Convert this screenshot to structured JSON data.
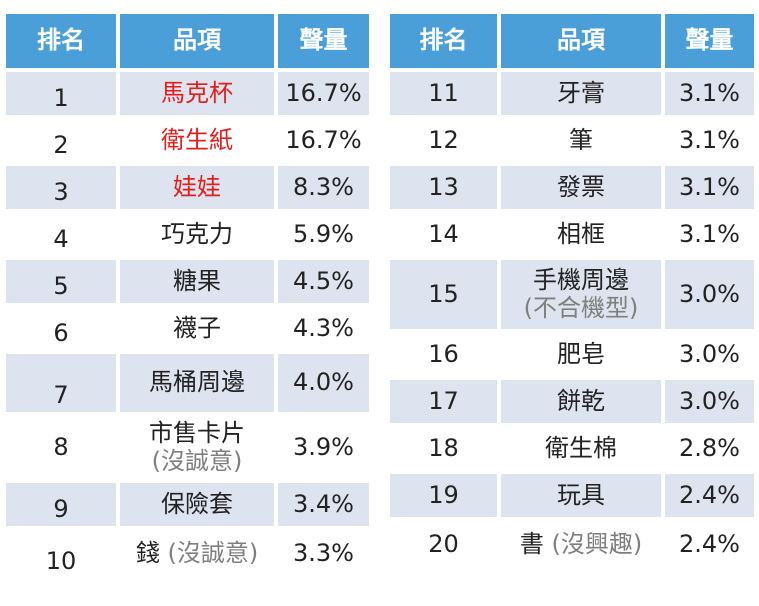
{
  "headers": {
    "rank": "排名",
    "item": "品項",
    "volume": "聲量"
  },
  "colors": {
    "header_bg": "#4a9fd9",
    "shaded_row": "#dde4ef",
    "highlight_text": "#e0201c",
    "note_text": "#7f7f7f"
  },
  "left_rows": [
    {
      "rank": "1",
      "item": "馬克杯",
      "note": "",
      "volume": "16.7%",
      "highlight": true
    },
    {
      "rank": "2",
      "item": "衛生紙",
      "note": "",
      "volume": "16.7%",
      "highlight": true
    },
    {
      "rank": "3",
      "item": "娃娃",
      "note": "",
      "volume": "8.3%",
      "highlight": true
    },
    {
      "rank": "4",
      "item": "巧克力",
      "note": "",
      "volume": "5.9%",
      "highlight": false
    },
    {
      "rank": "5",
      "item": "糖果",
      "note": "",
      "volume": "4.5%",
      "highlight": false
    },
    {
      "rank": "6",
      "item": "襪子",
      "note": "",
      "volume": "4.3%",
      "highlight": false
    },
    {
      "rank": "7",
      "item": "馬桶周邊",
      "note": "",
      "volume": "4.0%",
      "highlight": false
    },
    {
      "rank": "8",
      "item": "市售卡片",
      "note": "(沒誠意)",
      "volume": "3.9%",
      "highlight": false
    },
    {
      "rank": "9",
      "item": "保險套",
      "note": "",
      "volume": "3.4%",
      "highlight": false
    },
    {
      "rank": "10",
      "item": "錢",
      "note": "(沒誠意)",
      "volume": "3.3%",
      "highlight": false
    }
  ],
  "right_rows": [
    {
      "rank": "11",
      "item": "牙膏",
      "note": "",
      "volume": "3.1%"
    },
    {
      "rank": "12",
      "item": "筆",
      "note": "",
      "volume": "3.1%"
    },
    {
      "rank": "13",
      "item": "發票",
      "note": "",
      "volume": "3.1%"
    },
    {
      "rank": "14",
      "item": "相框",
      "note": "",
      "volume": "3.1%"
    },
    {
      "rank": "15",
      "item": "手機周邊",
      "note": "(不合機型)",
      "volume": "3.0%"
    },
    {
      "rank": "16",
      "item": "肥皂",
      "note": "",
      "volume": "3.0%"
    },
    {
      "rank": "17",
      "item": "餅乾",
      "note": "",
      "volume": "3.0%"
    },
    {
      "rank": "18",
      "item": "衛生棉",
      "note": "",
      "volume": "2.8%"
    },
    {
      "rank": "19",
      "item": "玩具",
      "note": "",
      "volume": "2.4%"
    },
    {
      "rank": "20",
      "item": "書",
      "note": "(沒興趣)",
      "volume": "2.4%"
    }
  ]
}
